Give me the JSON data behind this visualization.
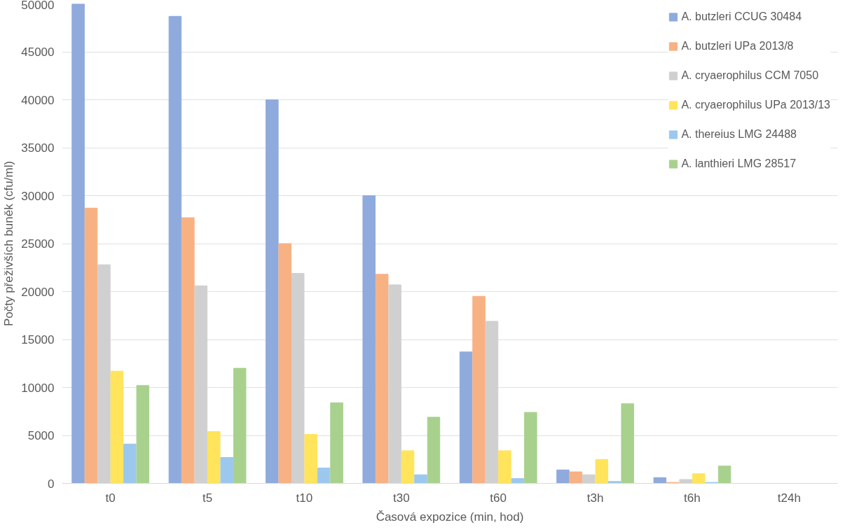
{
  "chart_data": {
    "type": "bar",
    "xlabel": "Časová expozice (min, hod)",
    "ylabel": "Počty přeživších buněk (cfu/ml)",
    "categories": [
      "t0",
      "t5",
      "t10",
      "t30",
      "t60",
      "t3h",
      "t6h",
      "t24h"
    ],
    "ylim": [
      0,
      50000
    ],
    "yticks": [
      0,
      5000,
      10000,
      15000,
      20000,
      25000,
      30000,
      35000,
      40000,
      45000,
      50000
    ],
    "grid": "y",
    "legend": "right",
    "series": [
      {
        "name": "A. butzleri CCUG 30484",
        "color": "#8faadc",
        "values": [
          50000,
          48700,
          40000,
          30000,
          13700,
          1400,
          600,
          0
        ]
      },
      {
        "name": "A. butzleri UPa 2013/8",
        "color": "#f8b183",
        "values": [
          28700,
          27700,
          25000,
          21800,
          19500,
          1200,
          100,
          0
        ]
      },
      {
        "name": "A. cryaerophilus CCM 7050",
        "color": "#d0d0d0",
        "values": [
          22800,
          20600,
          21900,
          20700,
          16900,
          900,
          400,
          0
        ]
      },
      {
        "name": "A. cryaerophilus UPa 2013/13",
        "color": "#ffe45c",
        "values": [
          11700,
          5400,
          5100,
          3400,
          3400,
          2500,
          1000,
          0
        ]
      },
      {
        "name": "A. thereius LMG 24488",
        "color": "#9dc8ee",
        "values": [
          4100,
          2700,
          1600,
          900,
          500,
          200,
          100,
          0
        ]
      },
      {
        "name": "A. lanthieri LMG 28517",
        "color": "#a9d18e",
        "values": [
          10200,
          12000,
          8400,
          6900,
          7400,
          8300,
          1800,
          0
        ]
      }
    ]
  }
}
